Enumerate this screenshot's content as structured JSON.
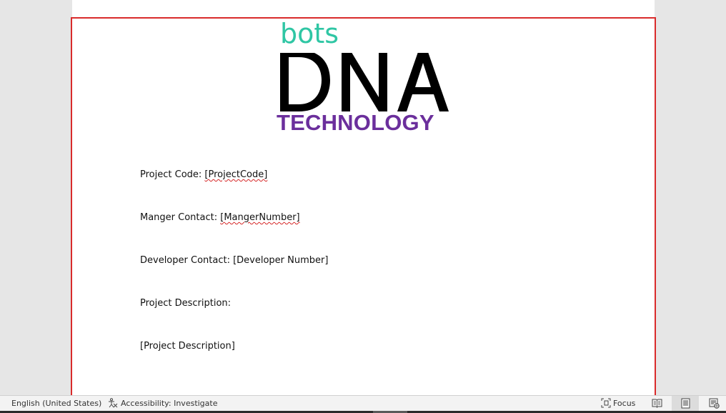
{
  "document": {
    "logo": {
      "top_word": "bots",
      "middle_word": "DNA",
      "bottom_word": "TECHNOLOGY",
      "colors": {
        "top": "#2fc6a4",
        "middle": "#000000",
        "bottom": "#6b2f9c"
      }
    },
    "fields": [
      {
        "label": "Project Code: ",
        "value": "[ProjectCode]"
      },
      {
        "label": "Manger Contact: ",
        "value": "[MangerNumber]"
      },
      {
        "label": "Developer Contact: ",
        "value": "[Developer Number]"
      },
      {
        "label": "Project Description:",
        "value": ""
      },
      {
        "label": "",
        "value": "[Project Description]"
      }
    ],
    "frame_color": "#d92b2b"
  },
  "status_bar": {
    "language": "English (United States)",
    "accessibility": "Accessibility: Investigate",
    "focus": "Focus",
    "icons": {
      "accessibility": "accessibility-icon",
      "focus": "focus-icon",
      "read_mode": "read-mode-icon",
      "print_layout": "print-layout-icon",
      "web_layout": "web-layout-icon"
    }
  }
}
